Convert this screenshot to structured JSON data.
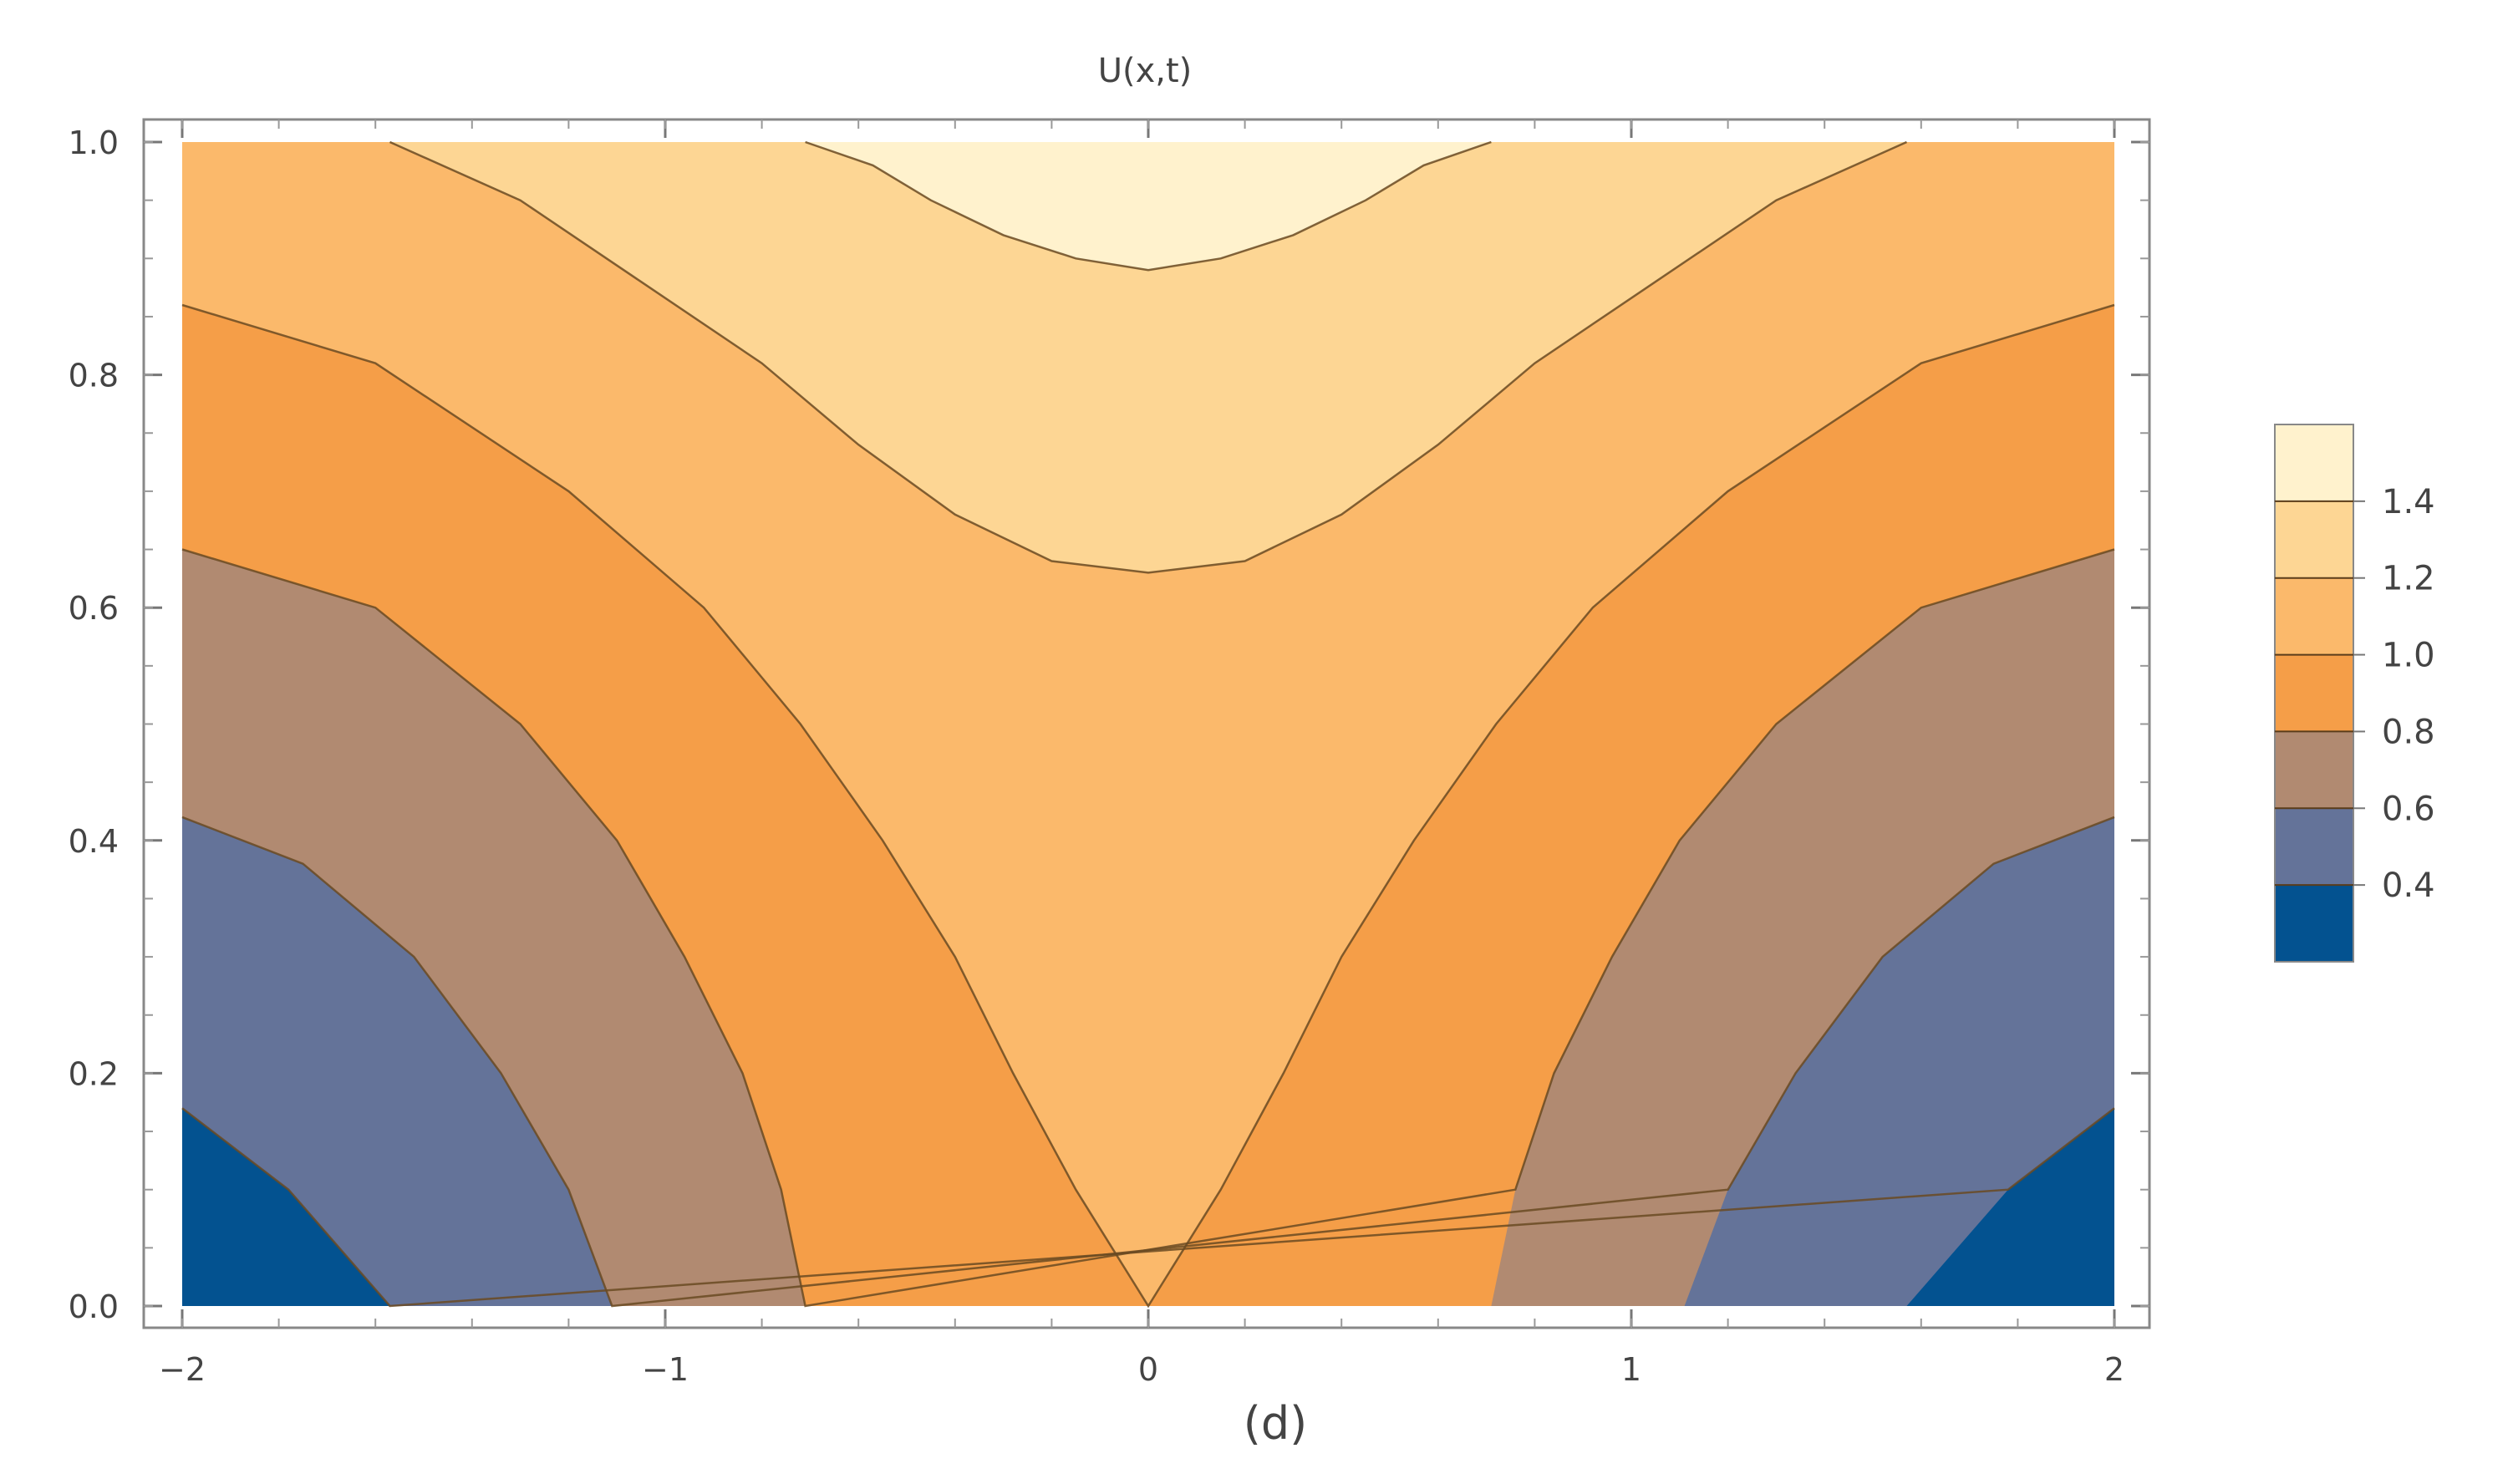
{
  "chart_data": {
    "type": "contour",
    "title": "U(x,t)",
    "caption": "(d)",
    "xlabel": "",
    "ylabel": "",
    "xlim": [
      -2,
      2
    ],
    "ylim": [
      0,
      1
    ],
    "x_ticks": [
      -2,
      -1,
      0,
      1,
      2
    ],
    "x_tick_labels": [
      "−2",
      "−1",
      "0",
      "1",
      "2"
    ],
    "y_ticks": [
      0,
      0.2,
      0.4,
      0.6,
      0.8,
      1.0
    ],
    "y_tick_labels": [
      "0.0",
      "0.2",
      "0.4",
      "0.6",
      "0.8",
      "1.0"
    ],
    "contour_levels": [
      0.4,
      0.6,
      0.8,
      1.0,
      1.2,
      1.4
    ],
    "legend_labels": [
      "1.4",
      "1.2",
      "1.0",
      "0.8",
      "0.6",
      "0.4"
    ],
    "band_colors": [
      "#035290",
      "#647399",
      "#b18a71",
      "#f59e48",
      "#fbb96b",
      "#fdd694",
      "#fff2cd"
    ],
    "contours": [
      {
        "level": 0.4,
        "side": "both",
        "points": [
          [
            1.57,
            0.0
          ],
          [
            1.78,
            0.1
          ],
          [
            2.0,
            0.17
          ]
        ]
      },
      {
        "level": 0.6,
        "side": "both",
        "points": [
          [
            1.11,
            0.0
          ],
          [
            1.2,
            0.1
          ],
          [
            1.34,
            0.2
          ],
          [
            1.52,
            0.3
          ],
          [
            1.75,
            0.38
          ],
          [
            2.0,
            0.42
          ]
        ]
      },
      {
        "level": 0.8,
        "side": "both",
        "points": [
          [
            0.71,
            0.0
          ],
          [
            0.76,
            0.1
          ],
          [
            0.84,
            0.2
          ],
          [
            0.96,
            0.3
          ],
          [
            1.1,
            0.4
          ],
          [
            1.3,
            0.5
          ],
          [
            1.6,
            0.6
          ],
          [
            2.0,
            0.65
          ]
        ]
      },
      {
        "level": 1.0,
        "side": "both",
        "points": [
          [
            0.0,
            0.0
          ],
          [
            0.15,
            0.1
          ],
          [
            0.28,
            0.2
          ],
          [
            0.4,
            0.3
          ],
          [
            0.55,
            0.4
          ],
          [
            0.72,
            0.5
          ],
          [
            0.92,
            0.6
          ],
          [
            1.2,
            0.7
          ],
          [
            1.6,
            0.81
          ],
          [
            2.0,
            0.86
          ]
        ]
      },
      {
        "level": 1.2,
        "side": "arc",
        "points": [
          [
            0.0,
            0.63
          ],
          [
            0.2,
            0.64
          ],
          [
            0.4,
            0.68
          ],
          [
            0.6,
            0.74
          ],
          [
            0.8,
            0.81
          ],
          [
            1.05,
            0.88
          ],
          [
            1.3,
            0.95
          ],
          [
            1.57,
            1.0
          ]
        ]
      },
      {
        "level": 1.4,
        "side": "arc",
        "points": [
          [
            0.0,
            0.89
          ],
          [
            0.15,
            0.9
          ],
          [
            0.3,
            0.92
          ],
          [
            0.45,
            0.95
          ],
          [
            0.57,
            0.98
          ],
          [
            0.71,
            1.0
          ]
        ]
      }
    ],
    "legend_position": "right",
    "grid": false
  }
}
